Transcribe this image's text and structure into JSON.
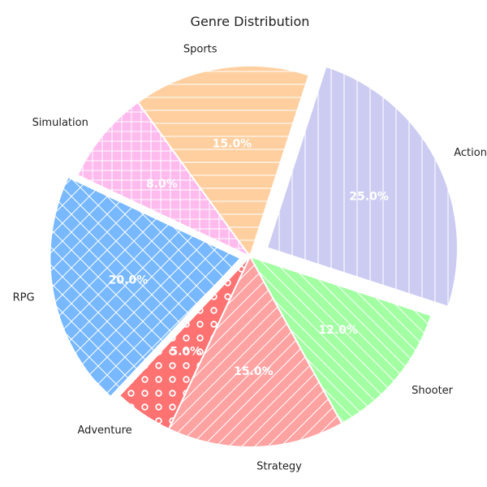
{
  "chart_data": {
    "type": "pie",
    "title": "Genre Distribution",
    "categories": [
      "Action",
      "Shooter",
      "Strategy",
      "Adventure",
      "RPG",
      "Simulation",
      "Sports"
    ],
    "values": [
      25.0,
      12.0,
      15.0,
      5.0,
      20.0,
      8.0,
      15.0
    ],
    "percent_labels": [
      "25.0%",
      "12.0%",
      "15.0%",
      "5.0%",
      "20.0%",
      "8.0%",
      "15.0%"
    ],
    "colors": [
      "#ccccf2",
      "#a2ffa2",
      "#ffa2a2",
      "#ff7272",
      "#77b8ff",
      "#ffbbee",
      "#ffcfa0"
    ],
    "hatches": [
      "vertical",
      "diagonal-back",
      "diagonal",
      "circles",
      "crosshatch-diagonal",
      "grid",
      "horizontal"
    ],
    "exploded": [
      0.1,
      0.0,
      0.0,
      0.0,
      0.05,
      0.0,
      0.0
    ],
    "start_angle_deg": 72,
    "direction": "clockwise",
    "legend": "none"
  }
}
